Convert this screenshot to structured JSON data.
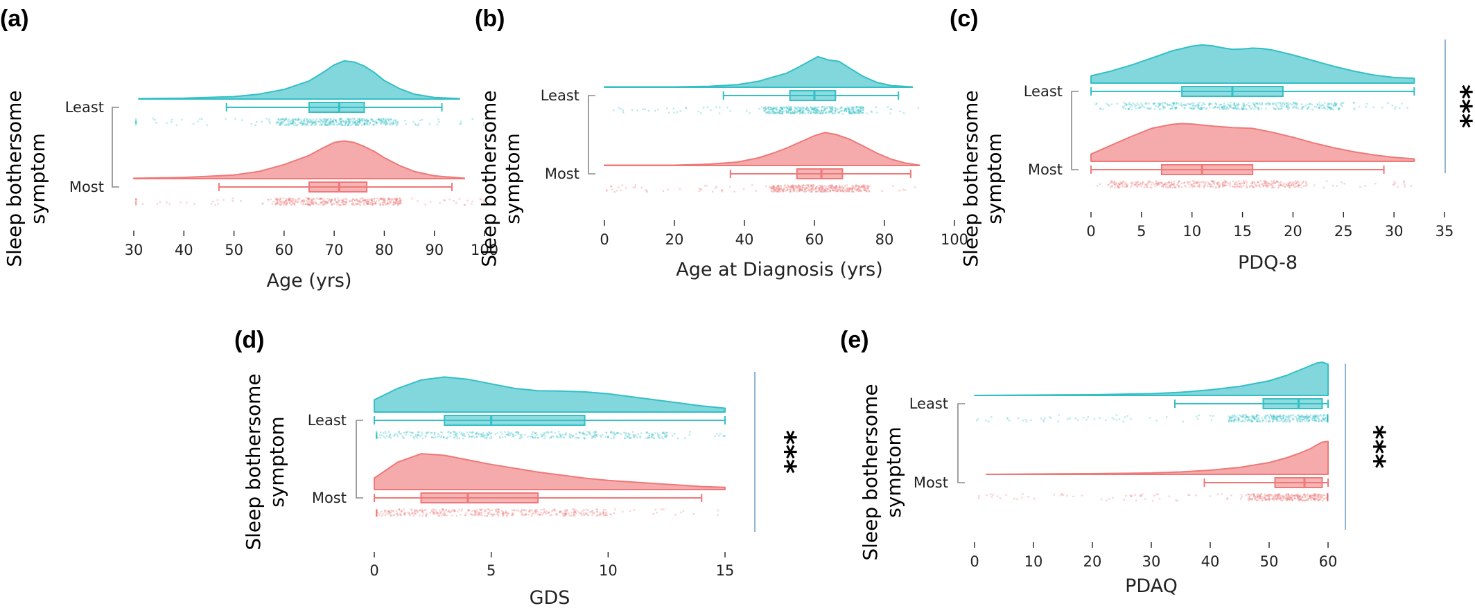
{
  "chart_data": [
    {
      "panel": "(a)",
      "type": "raincloud",
      "ylabel": [
        "Sleep bothersome",
        "symptom"
      ],
      "xlabel": "Age (yrs)",
      "xlim": [
        30,
        100
      ],
      "xticks": [
        "30",
        "40",
        "50",
        "60",
        "70",
        "80",
        "90",
        "100"
      ],
      "significance": "",
      "groups": [
        {
          "name": "Least",
          "color": "#33bfc6",
          "box": {
            "min": 48.5,
            "q1": 65,
            "median": 71,
            "q3": 76,
            "max": 91.5
          },
          "density": {
            "x": [
              31,
              40,
              50,
              55,
              60,
              65,
              68,
              70,
              72,
              74,
              76,
              78,
              80,
              83,
              86,
              90,
              95
            ],
            "y": [
              0.01,
              0.02,
              0.06,
              0.12,
              0.24,
              0.45,
              0.68,
              0.85,
              0.95,
              0.92,
              0.82,
              0.66,
              0.46,
              0.26,
              0.12,
              0.04,
              0.01
            ]
          }
        },
        {
          "name": "Most",
          "color": "#ef7878",
          "box": {
            "min": 47,
            "q1": 65,
            "median": 71,
            "q3": 76.5,
            "max": 93.5
          },
          "density": {
            "x": [
              30,
              40,
              50,
              55,
              60,
              65,
              68,
              70,
              72,
              74,
              76,
              78,
              80,
              83,
              86,
              90,
              96
            ],
            "y": [
              0.01,
              0.03,
              0.09,
              0.18,
              0.35,
              0.58,
              0.78,
              0.9,
              0.94,
              0.9,
              0.8,
              0.68,
              0.52,
              0.33,
              0.18,
              0.07,
              0.01
            ]
          }
        }
      ]
    },
    {
      "panel": "(b)",
      "type": "raincloud",
      "ylabel": [
        "Sleep bothersome",
        "symptom"
      ],
      "xlabel": "Age at Diagnosis (yrs)",
      "xlim": [
        0,
        100
      ],
      "xticks": [
        "0",
        "20",
        "40",
        "60",
        "80",
        "100"
      ],
      "significance": "",
      "groups": [
        {
          "name": "Least",
          "color": "#33bfc6",
          "box": {
            "min": 34,
            "q1": 53,
            "median": 60,
            "q3": 66,
            "max": 84
          },
          "density": {
            "x": [
              0,
              20,
              30,
              38,
              44,
              48,
              52,
              55,
              58,
              61,
              64,
              67,
              70,
              74,
              78,
              82,
              88
            ],
            "y": [
              0.01,
              0.01,
              0.03,
              0.08,
              0.18,
              0.3,
              0.42,
              0.58,
              0.75,
              0.92,
              0.82,
              0.78,
              0.58,
              0.32,
              0.14,
              0.05,
              0.01
            ]
          }
        },
        {
          "name": "Most",
          "color": "#ef7878",
          "box": {
            "min": 36,
            "q1": 55,
            "median": 62,
            "q3": 68,
            "max": 87.5
          },
          "density": {
            "x": [
              0,
              20,
              30,
              38,
              44,
              48,
              52,
              56,
              60,
              63,
              66,
              70,
              74,
              78,
              82,
              86,
              90
            ],
            "y": [
              0.01,
              0.01,
              0.04,
              0.1,
              0.22,
              0.35,
              0.5,
              0.68,
              0.86,
              0.95,
              0.9,
              0.76,
              0.56,
              0.35,
              0.18,
              0.07,
              0.01
            ]
          }
        }
      ]
    },
    {
      "panel": "(c)",
      "type": "raincloud",
      "ylabel": [
        "Sleep bothersome",
        "symptom"
      ],
      "xlabel": "PDQ-8",
      "xlim": [
        0,
        35
      ],
      "xticks": [
        "0",
        "5",
        "10",
        "15",
        "20",
        "25",
        "30",
        "35"
      ],
      "significance": "***",
      "groups": [
        {
          "name": "Least",
          "color": "#33bfc6",
          "box": {
            "min": 0,
            "q1": 9,
            "median": 14,
            "q3": 19,
            "max": 32
          },
          "density": {
            "x": [
              0,
              2,
              4,
              6,
              8,
              10,
              11,
              12,
              13,
              14,
              15,
              16,
              17,
              18,
              20,
              22,
              24,
              26,
              28,
              30,
              32
            ],
            "y": [
              0.18,
              0.3,
              0.45,
              0.62,
              0.8,
              0.92,
              0.95,
              0.93,
              0.88,
              0.84,
              0.85,
              0.87,
              0.86,
              0.82,
              0.7,
              0.56,
              0.42,
              0.3,
              0.2,
              0.14,
              0.12
            ]
          }
        },
        {
          "name": "Most",
          "color": "#ef7878",
          "box": {
            "min": 0,
            "q1": 7,
            "median": 11,
            "q3": 16,
            "max": 29
          },
          "density": {
            "x": [
              0,
              2,
              4,
              6,
              8,
              9,
              10,
              12,
              14,
              16,
              18,
              20,
              22,
              24,
              26,
              28,
              30,
              32
            ],
            "y": [
              0.18,
              0.4,
              0.62,
              0.82,
              0.92,
              0.94,
              0.93,
              0.88,
              0.84,
              0.82,
              0.72,
              0.6,
              0.46,
              0.34,
              0.24,
              0.16,
              0.1,
              0.06
            ]
          }
        }
      ]
    },
    {
      "panel": "(d)",
      "type": "raincloud",
      "ylabel": [
        "Sleep bothersome",
        "symptom"
      ],
      "xlabel": "GDS",
      "xlim": [
        0,
        15
      ],
      "xticks": [
        "0",
        "5",
        "10",
        "15"
      ],
      "significance": "***",
      "groups": [
        {
          "name": "Least",
          "color": "#33bfc6",
          "box": {
            "min": 0,
            "q1": 3,
            "median": 5,
            "q3": 9,
            "max": 15
          },
          "density": {
            "x": [
              0,
              1,
              2,
              3,
              4,
              5,
              6,
              7,
              8,
              9,
              10,
              11,
              12,
              13,
              14,
              15
            ],
            "y": [
              0.32,
              0.62,
              0.84,
              0.92,
              0.86,
              0.74,
              0.62,
              0.56,
              0.55,
              0.53,
              0.48,
              0.4,
              0.32,
              0.24,
              0.16,
              0.1
            ]
          }
        },
        {
          "name": "Most",
          "color": "#ef7878",
          "box": {
            "min": 0,
            "q1": 2,
            "median": 4,
            "q3": 7,
            "max": 14
          },
          "density": {
            "x": [
              0,
              1,
              2,
              3,
              4,
              5,
              6,
              7,
              8,
              9,
              10,
              11,
              12,
              13,
              14,
              15
            ],
            "y": [
              0.3,
              0.72,
              0.94,
              0.9,
              0.78,
              0.66,
              0.56,
              0.46,
              0.38,
              0.3,
              0.24,
              0.2,
              0.16,
              0.12,
              0.08,
              0.06
            ]
          }
        }
      ]
    },
    {
      "panel": "(e)",
      "type": "raincloud",
      "ylabel": [
        "Sleep bothersome",
        "symptom"
      ],
      "xlabel": "PDAQ",
      "xlim": [
        0,
        60
      ],
      "xticks": [
        "0",
        "10",
        "20",
        "30",
        "40",
        "50",
        "60"
      ],
      "significance": "***",
      "groups": [
        {
          "name": "Least",
          "color": "#33bfc6",
          "box": {
            "min": 34,
            "q1": 49,
            "median": 55,
            "q3": 59,
            "max": 60
          },
          "density": {
            "x": [
              0,
              10,
              20,
              30,
              35,
              40,
              45,
              50,
              53,
              55,
              57,
              58,
              59,
              60
            ],
            "y": [
              0.0,
              0.01,
              0.02,
              0.05,
              0.09,
              0.16,
              0.26,
              0.42,
              0.58,
              0.72,
              0.86,
              0.93,
              0.96,
              0.9
            ]
          }
        },
        {
          "name": "Most",
          "color": "#ef7878",
          "box": {
            "min": 39,
            "q1": 51,
            "median": 56,
            "q3": 59,
            "max": 60
          },
          "density": {
            "x": [
              2,
              10,
              20,
              30,
              35,
              40,
              45,
              50,
              53,
              55,
              57,
              58,
              59,
              60
            ],
            "y": [
              0.0,
              0.01,
              0.02,
              0.04,
              0.07,
              0.12,
              0.2,
              0.34,
              0.48,
              0.6,
              0.74,
              0.84,
              0.93,
              0.95
            ]
          }
        }
      ]
    }
  ]
}
